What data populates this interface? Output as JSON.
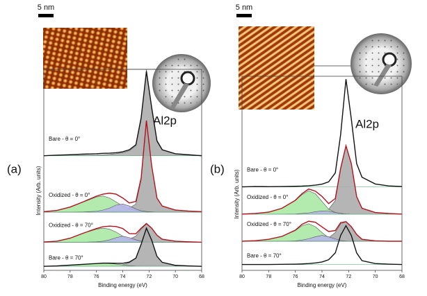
{
  "chart_data": [
    {
      "type": "line",
      "panel_label": "(a)",
      "scale_bar": "5 nm",
      "annotation": "Al2p",
      "x_label": "Binding energy (eV)",
      "y_label": "Intensity (Arb. units)",
      "x": [
        80,
        79,
        78,
        77,
        76,
        75.5,
        75,
        74.5,
        74,
        73.5,
        73,
        72.6,
        72.2,
        71.8,
        71.4,
        71,
        70,
        69,
        68
      ],
      "xlim": [
        80,
        68
      ],
      "xticks": [
        80,
        78,
        76,
        74,
        72,
        70,
        68
      ],
      "ylim": [
        0,
        100
      ],
      "series": [
        {
          "name": "Bare - θ = 0°",
          "color": "#111111",
          "offset": 57,
          "values": [
            57,
            57.3,
            57.5,
            57.8,
            58,
            58.2,
            58.3,
            58.5,
            59,
            60,
            62.5,
            76,
            99,
            81,
            64.5,
            60,
            58,
            57.5,
            57
          ],
          "components": [
            {
              "color": "#a8a8a8",
              "values": [
                57,
                57,
                57,
                57.2,
                57.3,
                57.5,
                57.7,
                58,
                58.5,
                59.5,
                62,
                75,
                100,
                80,
                64,
                60,
                58,
                57.5,
                57.2
              ]
            }
          ]
        },
        {
          "name": "Oxidized - θ = 0°",
          "color": "#b3121b",
          "offset": 29,
          "values": [
            29.2,
            29.8,
            31.5,
            34.1,
            36.9,
            37.9,
            38.4,
            37.9,
            36,
            33.5,
            34.3,
            46,
            74.5,
            52,
            36,
            32,
            30,
            29.5,
            29.2
          ],
          "components": [
            {
              "color": "#a8a8a8",
              "values": [
                29,
                29,
                29,
                29.1,
                29.2,
                29.3,
                29.4,
                29.6,
                30,
                31,
                33,
                45,
                74,
                52,
                36,
                32,
                30,
                29.5,
                29.2
              ]
            },
            {
              "color": "#a6e8a0",
              "values": [
                29.2,
                29.8,
                31.5,
                34,
                36.5,
                37,
                36,
                34,
                32,
                30.5,
                29.8,
                29.4,
                29.2,
                29.1,
                29,
                29,
                29,
                29,
                29
              ]
            },
            {
              "color": "#b7b4ee",
              "values": [
                29,
                29,
                29,
                29.1,
                29.4,
                30,
                31,
                32.5,
                33,
                32,
                30.5,
                29.6,
                29.3,
                29.1,
                29,
                29,
                29,
                29,
                29
              ]
            }
          ]
        },
        {
          "name": "Oxidized - θ = 70°",
          "color": "#b3121b",
          "offset": 14,
          "values": [
            14.1,
            14.5,
            16,
            18.5,
            20.8,
            21.7,
            22,
            21.8,
            20.8,
            18.3,
            18.2,
            21,
            23.3,
            21,
            17.5,
            15.5,
            14.5,
            14.2,
            14
          ],
          "components": [
            {
              "color": "#a8a8a8",
              "values": [
                14,
                14,
                14,
                14,
                14.1,
                14.2,
                14.3,
                14.5,
                14.8,
                15.5,
                17,
                20.5,
                23,
                21,
                17.5,
                15.5,
                14.5,
                14.2,
                14
              ]
            },
            {
              "color": "#a6e8a0",
              "values": [
                14.1,
                14.5,
                16,
                18.5,
                20.5,
                21,
                20.5,
                19,
                17,
                15.5,
                14.7,
                14.3,
                14.1,
                14,
                14,
                14,
                14,
                14,
                14
              ]
            },
            {
              "color": "#b7b4ee",
              "values": [
                14,
                14,
                14,
                14,
                14.2,
                14.5,
                15.2,
                16.3,
                17,
                16.3,
                15.2,
                14.5,
                14.2,
                14,
                14,
                14,
                14,
                14,
                14
              ]
            }
          ]
        },
        {
          "name": "Bare - θ = 70°",
          "color": "#111111",
          "offset": 2,
          "values": [
            2,
            2.2,
            2.6,
            3,
            3.4,
            3.6,
            3.6,
            3.5,
            3.5,
            4.1,
            6.1,
            13,
            21,
            15,
            7,
            4,
            2.5,
            2.2,
            2
          ],
          "components": [
            {
              "color": "#a8a8a8",
              "values": [
                2,
                2,
                2,
                2,
                2,
                2.1,
                2.2,
                2.4,
                2.8,
                3.8,
                6,
                13,
                21,
                15,
                7,
                4,
                2.5,
                2.2,
                2
              ]
            },
            {
              "color": "#a6e8a0",
              "values": [
                2,
                2.2,
                2.6,
                3,
                3.4,
                3.5,
                3.4,
                3.1,
                2.7,
                2.3,
                2.1,
                2,
                2,
                2,
                2,
                2,
                2,
                2,
                2
              ]
            }
          ]
        }
      ]
    },
    {
      "type": "line",
      "panel_label": "(b)",
      "scale_bar": "5 nm",
      "annotation": "Al2p",
      "x_label": "Binding energy (eV)",
      "y_label": "Intensity (Arb. units)",
      "x": [
        80,
        79,
        78,
        77,
        76,
        75.5,
        75,
        74.5,
        74,
        73.5,
        73,
        72.6,
        72.2,
        71.8,
        71.4,
        71,
        70,
        69,
        68
      ],
      "xlim": [
        80,
        68
      ],
      "xticks": [
        80,
        78,
        76,
        74,
        72,
        70,
        68
      ],
      "ylim": [
        0,
        100
      ],
      "series": [
        {
          "name": "Bare - θ = 0°",
          "color": "#111111",
          "offset": 43,
          "values": [
            43,
            43.2,
            43.1,
            43.2,
            43.3,
            43.4,
            43.6,
            43.9,
            44.4,
            45.6,
            50.2,
            70,
            98.5,
            78,
            55,
            48,
            44.5,
            43.5,
            43.2
          ],
          "components": []
        },
        {
          "name": "Oxidized - θ = 0°",
          "color": "#b3121b",
          "offset": 29,
          "values": [
            29,
            29.3,
            30,
            32,
            36.1,
            39.5,
            41.9,
            40.8,
            38.1,
            34.4,
            37,
            52.6,
            64.2,
            55,
            38,
            32,
            29.8,
            29.3,
            29
          ],
          "components": [
            {
              "color": "#a8a8a8",
              "values": [
                29,
                29,
                29,
                29,
                29.1,
                29.2,
                29.3,
                29.6,
                30,
                31.5,
                36,
                52,
                64,
                55,
                38,
                32,
                29.8,
                29.3,
                29
              ]
            },
            {
              "color": "#a6e8a0",
              "values": [
                29,
                29.3,
                30,
                32,
                36,
                39,
                41,
                39.5,
                35.5,
                31.5,
                29.8,
                29.3,
                29.1,
                29,
                29,
                29,
                29,
                29,
                29
              ]
            },
            {
              "color": "#b7b4ee",
              "values": [
                29,
                29,
                29,
                29,
                29.1,
                29.3,
                29.6,
                30.2,
                30.6,
                30.4,
                29.8,
                29.3,
                29.1,
                29,
                29,
                29,
                29,
                29,
                29
              ]
            }
          ]
        },
        {
          "name": "Oxidized - θ = 70°",
          "color": "#b3121b",
          "offset": 15,
          "values": [
            15,
            15.3,
            16,
            17.5,
            20.7,
            23.7,
            25.3,
            24.8,
            22.4,
            20,
            20.5,
            24.6,
            25.1,
            22.5,
            18.5,
            16,
            15.2,
            15,
            15
          ],
          "components": [
            {
              "color": "#a8a8a8",
              "values": [
                15,
                15,
                15,
                15,
                15,
                15.1,
                15.2,
                15.4,
                15.8,
                16.8,
                19.5,
                24,
                25,
                22.5,
                18.5,
                16,
                15.2,
                15,
                15
              ]
            },
            {
              "color": "#a6e8a0",
              "values": [
                15,
                15.3,
                16,
                17.5,
                20.5,
                23,
                24,
                22.5,
                19.5,
                16.8,
                15.6,
                15.2,
                15,
                15,
                15,
                15,
                15,
                15,
                15
              ]
            },
            {
              "color": "#b7b4ee",
              "values": [
                15,
                15,
                15,
                15,
                15.2,
                15.6,
                16.3,
                17.3,
                18,
                17.3,
                16.2,
                15.4,
                15.1,
                15,
                15,
                15,
                15,
                15,
                15
              ]
            }
          ]
        },
        {
          "name": "Bare - θ = 70°",
          "color": "#111111",
          "offset": 3,
          "values": [
            3,
            3,
            3,
            3.1,
            3.2,
            3.3,
            3.5,
            3.8,
            4.3,
            5.5,
            9,
            18,
            23,
            18,
            9,
            5,
            3.5,
            3.2,
            3
          ],
          "components": []
        }
      ]
    }
  ]
}
